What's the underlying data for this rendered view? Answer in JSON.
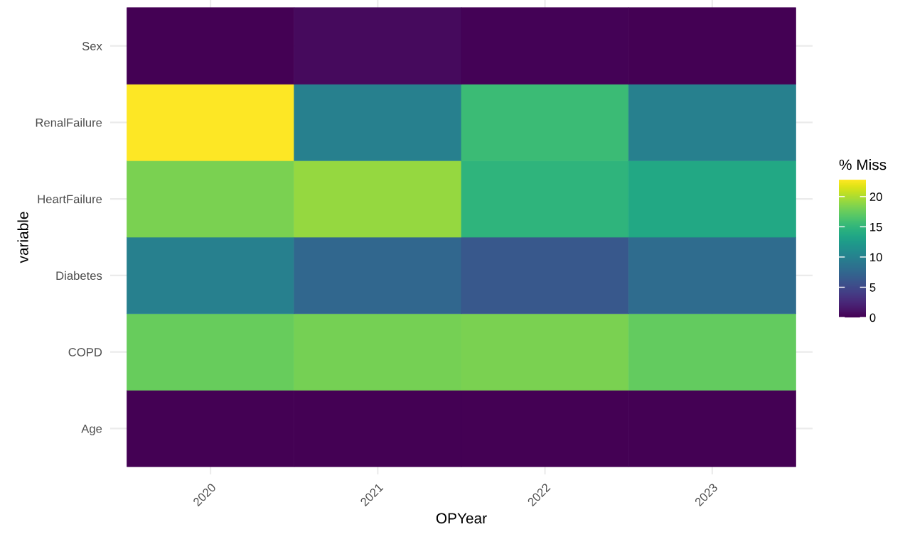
{
  "chart_data": {
    "type": "heatmap",
    "xlabel": "OPYear",
    "ylabel": "variable",
    "clabel": "% Miss",
    "categories": [
      "2020",
      "2021",
      "2022",
      "2023"
    ],
    "y_categories": [
      "Sex",
      "RenalFailure",
      "HeartFailure",
      "Diabetes",
      "COPD",
      "Age"
    ],
    "cells": [
      [
        0,
        0.6,
        0.1,
        0
      ],
      [
        22.8,
        9.8,
        15.5,
        9.8
      ],
      [
        18.2,
        19.2,
        14.8,
        13.7
      ],
      [
        9.8,
        7.5,
        6.2,
        8
      ],
      [
        17.5,
        18,
        18.2,
        17.3
      ],
      [
        0,
        0,
        0,
        0
      ]
    ],
    "clim": [
      0,
      22.8
    ],
    "cticks": [
      0,
      5,
      10,
      15,
      20
    ],
    "grid": true
  }
}
